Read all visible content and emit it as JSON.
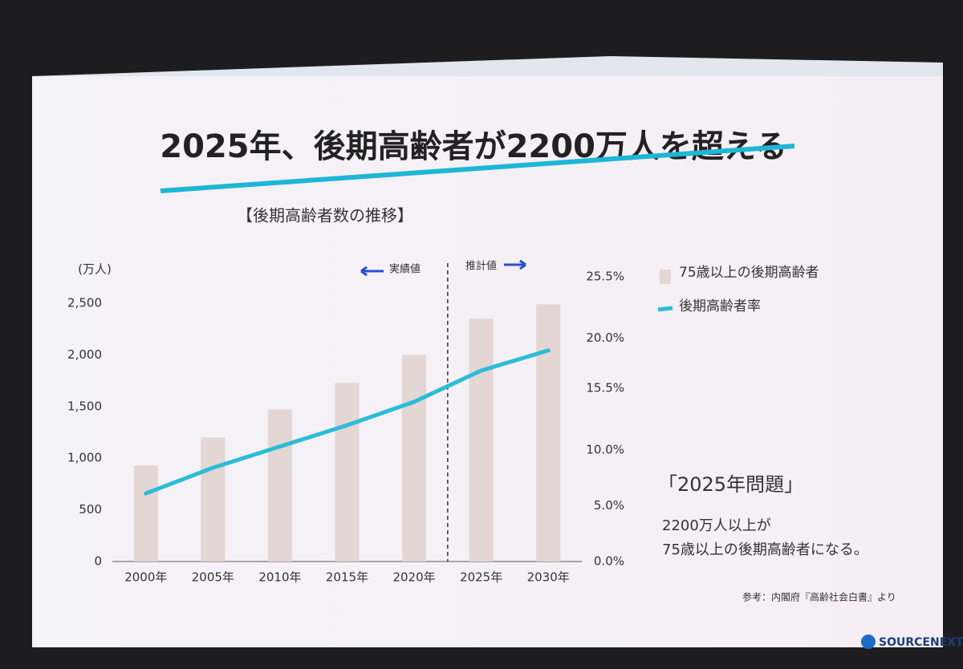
{
  "title": "2025年、後期高齢者が2200万人を超える",
  "chart_data": {
    "type": "bar-line",
    "title": "【後期高齢者数の推移】",
    "y_label": "(万人)",
    "categories": [
      "2000年",
      "2005年",
      "2010年",
      "2015年",
      "2020年",
      "2025年",
      "2030年"
    ],
    "series": [
      {
        "name": "75歳以上の後期高齢者",
        "type": "bar",
        "color": "#e3d6d3",
        "values": [
          930,
          1200,
          1470,
          1730,
          2000,
          2350,
          2490
        ]
      },
      {
        "name": "後期高齢者率",
        "type": "line",
        "color": "#2bbcd8",
        "axis": "y2",
        "values": [
          6.1,
          8.4,
          10.3,
          12.2,
          14.3,
          17.1,
          18.9
        ]
      }
    ],
    "ylim": [
      0,
      2500
    ],
    "yticks": [
      0,
      500,
      {
        "value": 1000,
        "label": "1,000"
      },
      {
        "value": 1500,
        "label": "1,500"
      },
      {
        "value": 2000,
        "label": "2,000"
      },
      {
        "value": 2500,
        "label": "2,500"
      }
    ],
    "y2lim": [
      0,
      25.5
    ],
    "y2ticks": [
      {
        "value": 0,
        "label": "0.0%"
      },
      {
        "value": 5,
        "label": "5.0%"
      },
      {
        "value": 10,
        "label": "10.0%"
      },
      {
        "value": 15.5,
        "label": "15.5%"
      },
      {
        "value": 20,
        "label": "20.0%"
      },
      {
        "value": 25.5,
        "label": "25.5%"
      }
    ],
    "annotations": {
      "actual": "実績値",
      "forecast": "推計値"
    }
  },
  "note": {
    "heading": "「2025年問題」",
    "line1": "2200万人以上が",
    "line2": "75歳以上の後期高齢者になる。"
  },
  "source": "参考：内閣府『高齢社会白書』より",
  "logo": "SOURCENEXT."
}
